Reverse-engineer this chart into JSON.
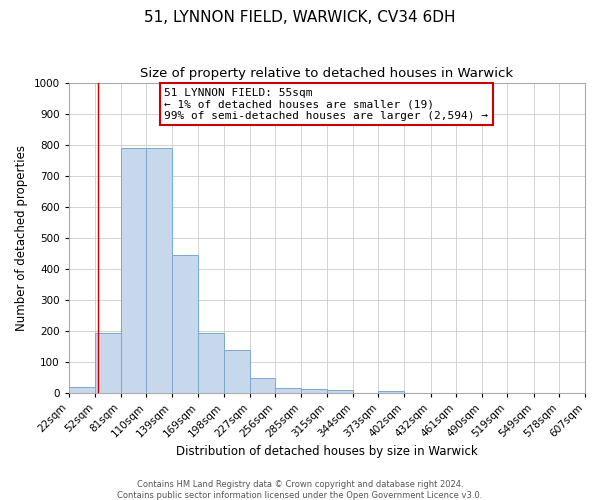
{
  "title": "51, LYNNON FIELD, WARWICK, CV34 6DH",
  "subtitle": "Size of property relative to detached houses in Warwick",
  "xlabel": "Distribution of detached houses by size in Warwick",
  "ylabel": "Number of detached properties",
  "bar_color": "#c8d8ec",
  "bar_edge_color": "#7aa8cc",
  "background_color": "#ffffff",
  "grid_color": "#cccccc",
  "bin_edges": [
    22,
    52,
    81,
    110,
    139,
    169,
    198,
    227,
    256,
    285,
    315,
    344,
    373,
    402,
    432,
    461,
    490,
    519,
    549,
    578,
    607
  ],
  "bin_labels": [
    "22sqm",
    "52sqm",
    "81sqm",
    "110sqm",
    "139sqm",
    "169sqm",
    "198sqm",
    "227sqm",
    "256sqm",
    "285sqm",
    "315sqm",
    "344sqm",
    "373sqm",
    "402sqm",
    "432sqm",
    "461sqm",
    "490sqm",
    "519sqm",
    "549sqm",
    "578sqm",
    "607sqm"
  ],
  "counts": [
    20,
    195,
    790,
    790,
    445,
    195,
    140,
    50,
    15,
    12,
    10,
    0,
    8,
    0,
    0,
    0,
    0,
    0,
    0,
    0
  ],
  "ylim": [
    0,
    1000
  ],
  "yticks": [
    0,
    100,
    200,
    300,
    400,
    500,
    600,
    700,
    800,
    900,
    1000
  ],
  "property_line_x": 55,
  "property_line_color": "#cc0000",
  "annotation_line1": "51 LYNNON FIELD: 55sqm",
  "annotation_line2": "← 1% of detached houses are smaller (19)",
  "annotation_line3": "99% of semi-detached houses are larger (2,594) →",
  "annotation_box_color": "#cc0000",
  "footer_line1": "Contains HM Land Registry data © Crown copyright and database right 2024.",
  "footer_line2": "Contains public sector information licensed under the Open Government Licence v3.0.",
  "title_fontsize": 11,
  "subtitle_fontsize": 9.5,
  "axis_label_fontsize": 8.5,
  "tick_fontsize": 7.5,
  "annotation_fontsize": 8,
  "footer_fontsize": 6
}
